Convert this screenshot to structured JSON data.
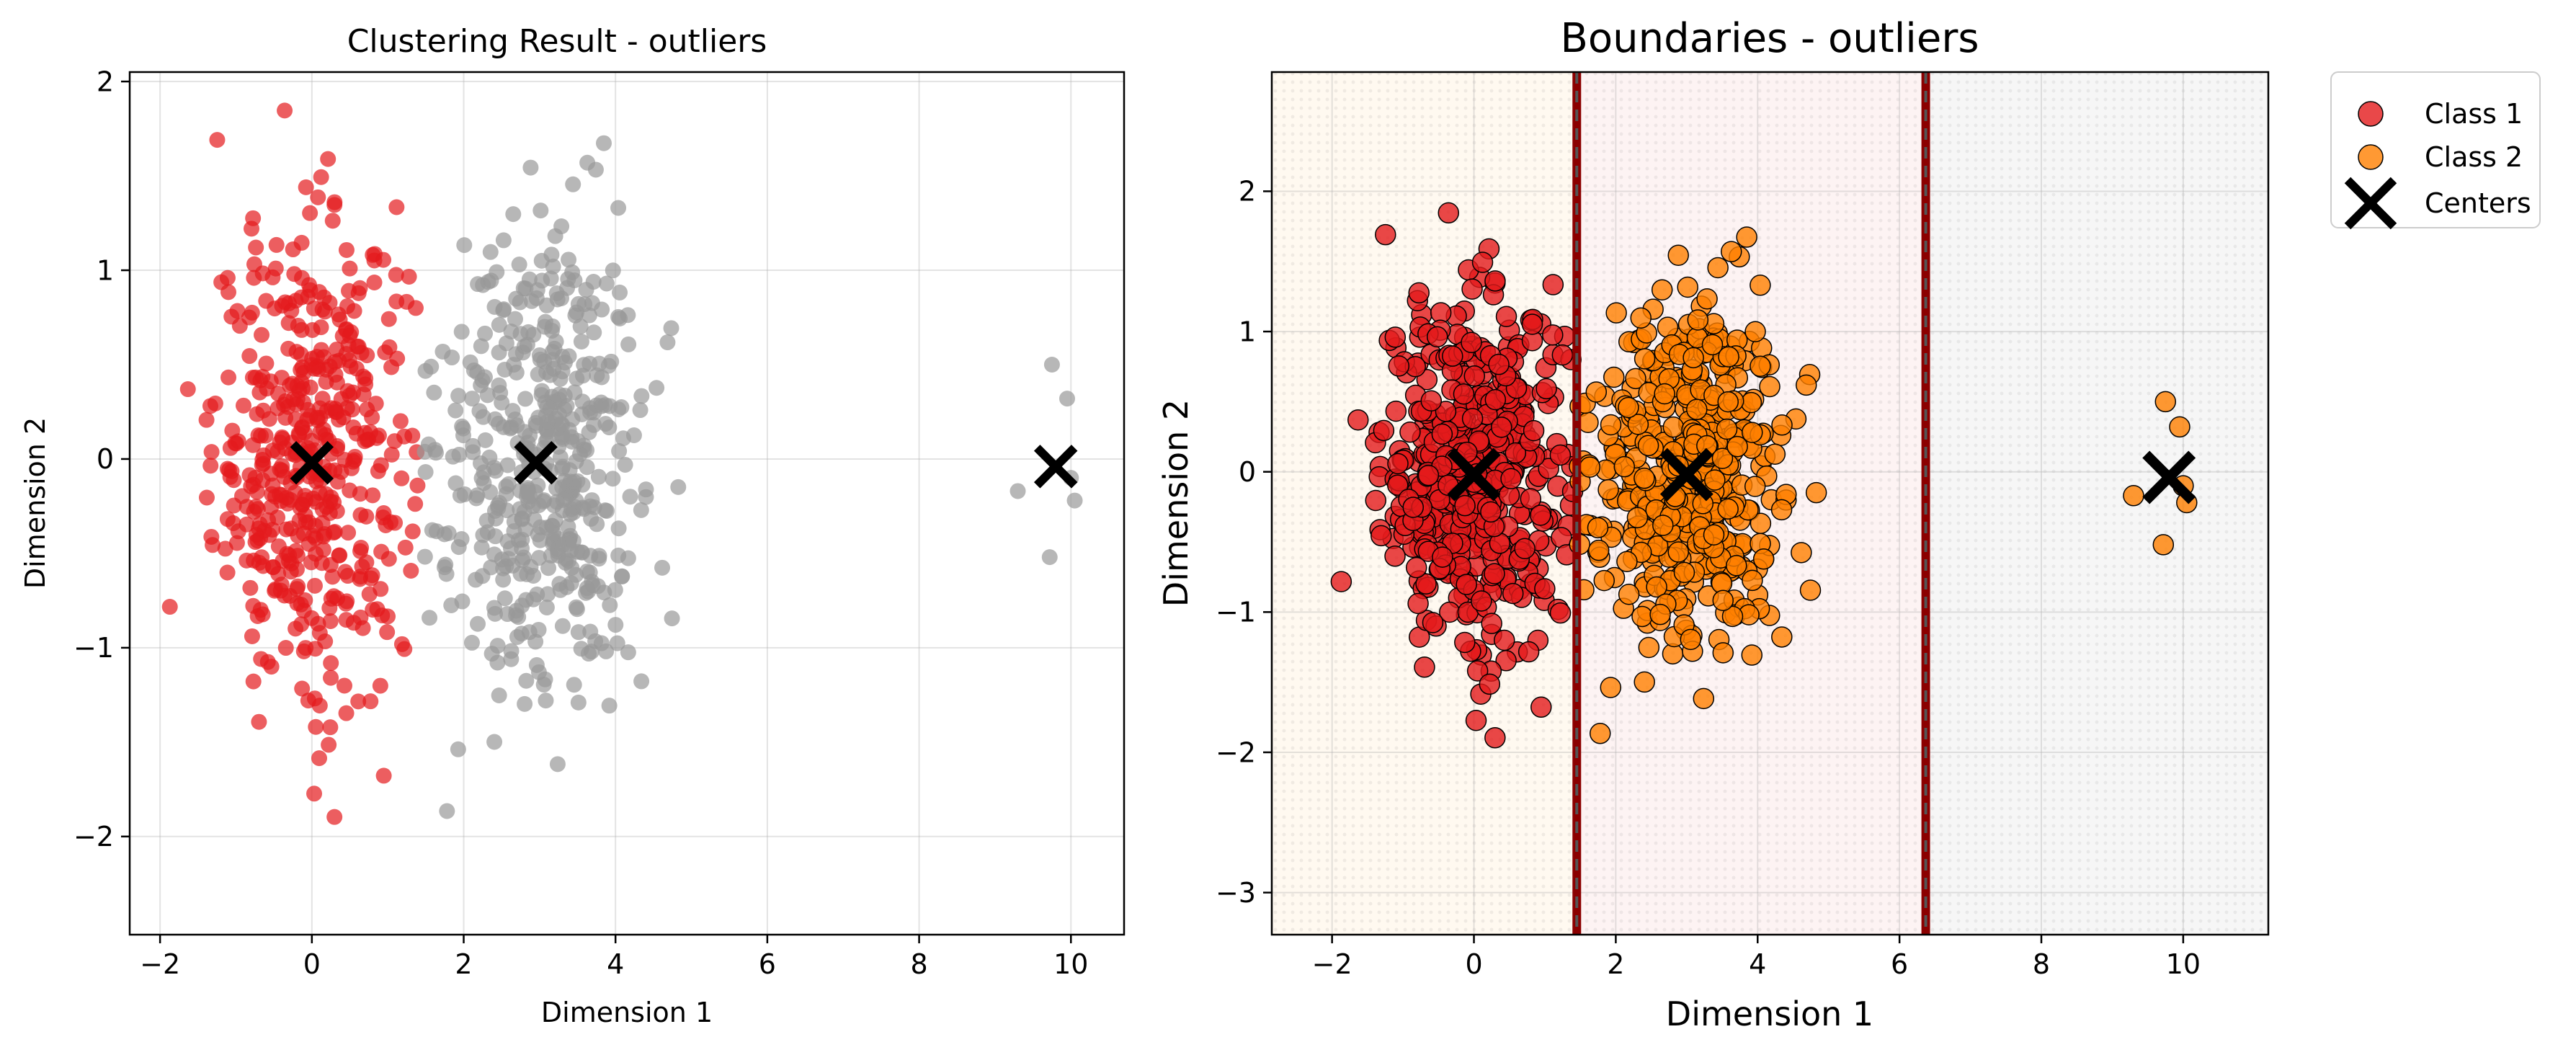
{
  "chart_data": [
    {
      "type": "scatter",
      "title": "Clustering Result - outliers",
      "xlabel": "Dimension 1",
      "ylabel": "Dimension 2",
      "xlim": [
        -2.4,
        10.7
      ],
      "ylim": [
        -2.52,
        2.05
      ],
      "xticks": [
        -2,
        0,
        2,
        4,
        6,
        8,
        10
      ],
      "yticks": [
        -2,
        -1,
        0,
        1,
        2
      ],
      "grid": true,
      "legend": "none",
      "series": [
        {
          "color": "#e41a1c",
          "alpha": 0.7,
          "center": [
            0,
            0
          ],
          "sx": 0.65,
          "sy": 0.62,
          "n": 480,
          "xmin": -1.95,
          "xmax": 1.45,
          "ymin": -2.3,
          "ymax": 1.85
        },
        {
          "color": "#999999",
          "alpha": 0.7,
          "center": [
            3,
            0
          ],
          "sx": 0.68,
          "sy": 0.62,
          "n": 480,
          "xmin": 1.45,
          "xmax": 4.85,
          "ymin": -1.95,
          "ymax": 1.82
        },
        {
          "color": "#999999",
          "alpha": 0.7,
          "points": [
            [
              9.75,
              0.5
            ],
            [
              9.95,
              0.32
            ],
            [
              9.3,
              -0.17
            ],
            [
              10.0,
              -0.1
            ],
            [
              10.05,
              -0.22
            ],
            [
              9.72,
              -0.52
            ]
          ]
        }
      ],
      "centers": [
        [
          0.0,
          -0.02
        ],
        [
          2.95,
          -0.02
        ],
        [
          9.8,
          -0.04
        ]
      ],
      "center_color": "#000000"
    },
    {
      "type": "scatter",
      "title": "Boundaries - outliers",
      "xlabel": "Dimension 1",
      "ylabel": "Dimension 2",
      "xlim": [
        -2.85,
        11.2
      ],
      "ylim": [
        -3.3,
        2.85
      ],
      "xticks": [
        -2,
        0,
        2,
        4,
        6,
        8,
        10
      ],
      "yticks": [
        -3,
        -2,
        -1,
        0,
        1,
        2
      ],
      "grid": true,
      "legend": "top-right-outside",
      "boundaries": [
        1.45,
        6.37
      ],
      "regions": [
        {
          "from": -2.85,
          "to": 1.45,
          "color": "#ffe9c8"
        },
        {
          "from": 1.45,
          "to": 6.37,
          "color": "#f7d3d3"
        },
        {
          "from": 6.37,
          "to": 11.2,
          "color": "#dddddd"
        }
      ],
      "series": [
        {
          "name": "Class 1",
          "color": "#e41a1c",
          "center": [
            0,
            0
          ],
          "sx": 0.65,
          "sy": 0.62,
          "n": 480,
          "xmin": -1.95,
          "xmax": 1.45,
          "ymin": -2.3,
          "ymax": 1.85
        },
        {
          "name": "Class 2",
          "color": "#ff7f00",
          "center": [
            3,
            0
          ],
          "sx": 0.68,
          "sy": 0.62,
          "n": 480,
          "xmin": 1.45,
          "xmax": 4.85,
          "ymin": -1.95,
          "ymax": 1.82,
          "outliers": [
            [
              9.75,
              0.5
            ],
            [
              9.95,
              0.32
            ],
            [
              9.3,
              -0.17
            ],
            [
              10.0,
              -0.1
            ],
            [
              10.05,
              -0.22
            ],
            [
              9.72,
              -0.52
            ]
          ]
        }
      ],
      "centers": [
        [
          0.0,
          -0.02
        ],
        [
          3.0,
          -0.02
        ],
        [
          9.8,
          -0.04
        ]
      ],
      "center_color": "#000000",
      "legend_entries": [
        "Class 1",
        "Class 2",
        "Centers"
      ]
    }
  ]
}
